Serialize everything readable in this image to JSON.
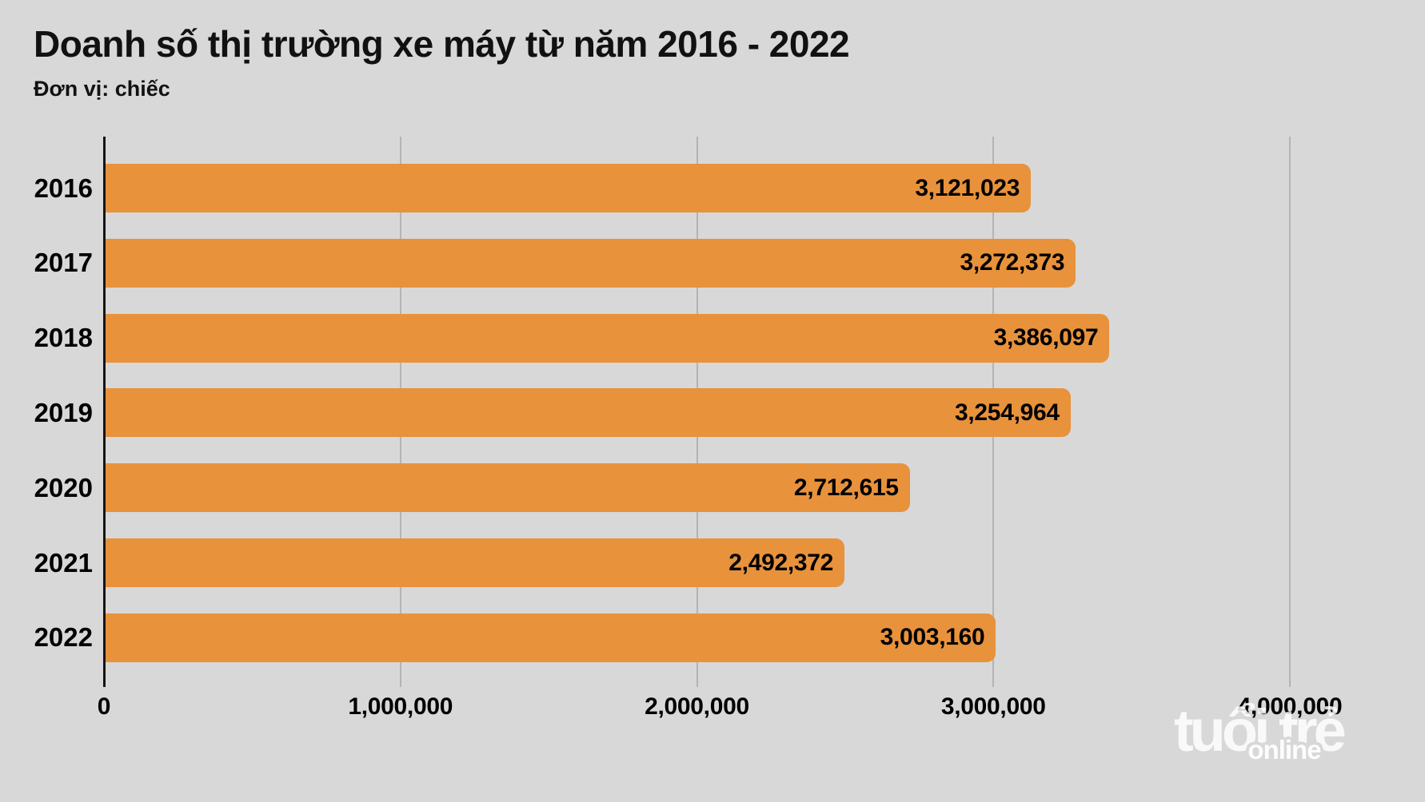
{
  "title": "Doanh số thị trường xe máy từ năm 2016 - 2022",
  "subtitle": "Đơn vị: chiếc",
  "watermark": {
    "brand": "tuổi trẻ",
    "sub": "online"
  },
  "colors": {
    "background": "#d8d8d8",
    "bar": "#e8923c",
    "gridline": "#b4b4b4",
    "axis": "#141414",
    "text": "#000000",
    "watermark": "#ffffff"
  },
  "chart_data": {
    "type": "bar",
    "orientation": "horizontal",
    "title": "Doanh số thị trường xe máy từ năm 2016 - 2022",
    "subtitle": "Đơn vị: chiếc",
    "categories": [
      "2016",
      "2017",
      "2018",
      "2019",
      "2020",
      "2021",
      "2022"
    ],
    "values": [
      3121023,
      3272373,
      3386097,
      3254964,
      2712615,
      2492372,
      3003160
    ],
    "value_labels": [
      "3,121,023",
      "3,272,373",
      "3,386,097",
      "3,254,964",
      "2,712,615",
      "2,492,372",
      "3,003,160"
    ],
    "xlabel": "",
    "ylabel": "",
    "xlim": [
      0,
      4000000
    ],
    "x_ticks": [
      0,
      1000000,
      2000000,
      3000000,
      4000000
    ],
    "x_tick_labels": [
      "0",
      "1,000,000",
      "2,000,000",
      "3,000,000",
      "4,000,000"
    ],
    "grid": true,
    "legend": false,
    "value_labels_position": "inside-end"
  }
}
